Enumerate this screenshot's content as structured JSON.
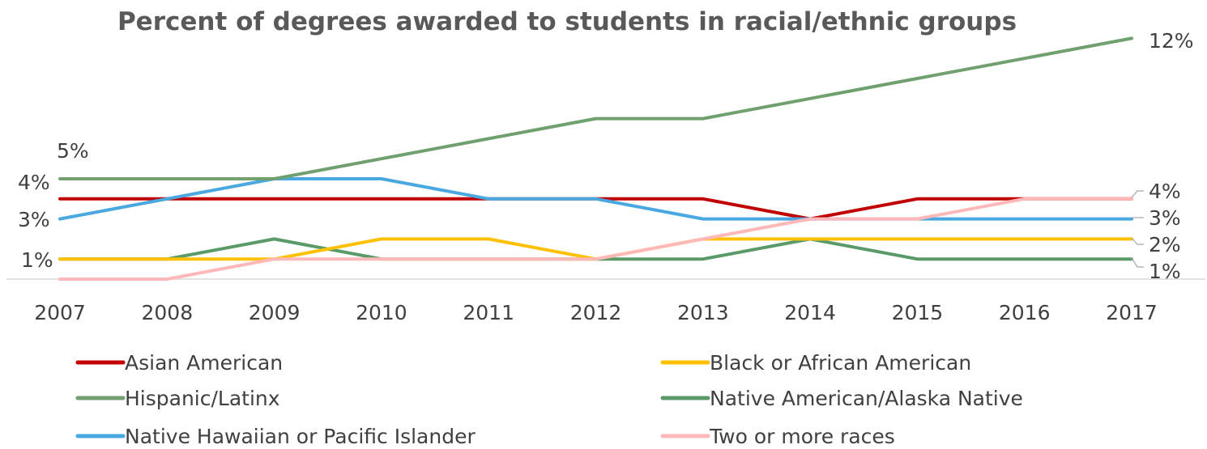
{
  "chart_data": {
    "type": "line",
    "title": "Percent of degrees awarded to students in racial/ethnic groups",
    "xlabel": "",
    "ylabel": "",
    "categories": [
      "2007",
      "2008",
      "2009",
      "2010",
      "2011",
      "2012",
      "2013",
      "2014",
      "2015",
      "2016",
      "2017"
    ],
    "ylim": [
      0,
      12
    ],
    "grid": false,
    "legend_position": "bottom",
    "series": [
      {
        "name": "Asian American",
        "color": "#c00000",
        "values": [
          4,
          4,
          4,
          4,
          4,
          4,
          4,
          3,
          4,
          4,
          4
        ]
      },
      {
        "name": "Black or African American",
        "color": "#ffc000",
        "values": [
          1,
          1,
          1,
          2,
          2,
          1,
          2,
          2,
          2,
          2,
          2
        ]
      },
      {
        "name": "Hispanic/Latinx",
        "color": "#70a070",
        "values": [
          5,
          5,
          5,
          6,
          7,
          8,
          8,
          9,
          10,
          11,
          12
        ]
      },
      {
        "name": "Native American/Alaska Native",
        "color": "#5a9a68",
        "values": [
          1,
          1,
          2,
          1,
          1,
          1,
          1,
          2,
          1,
          1,
          1
        ]
      },
      {
        "name": "Native Hawaiian or Pacific Islander",
        "color": "#4aa8e0",
        "values": [
          3,
          4,
          5,
          5,
          4,
          4,
          3,
          3,
          3,
          3,
          3
        ]
      },
      {
        "name": "Two or more races",
        "color": "#ffb8b8",
        "values": [
          0,
          0,
          1,
          1,
          1,
          1,
          2,
          3,
          3,
          4,
          4
        ]
      }
    ],
    "data_labels": {
      "start": [
        "5%",
        "4%",
        "3%",
        "1%"
      ],
      "end": [
        "12%",
        "4%",
        "3%",
        "2%",
        "1%"
      ]
    }
  }
}
